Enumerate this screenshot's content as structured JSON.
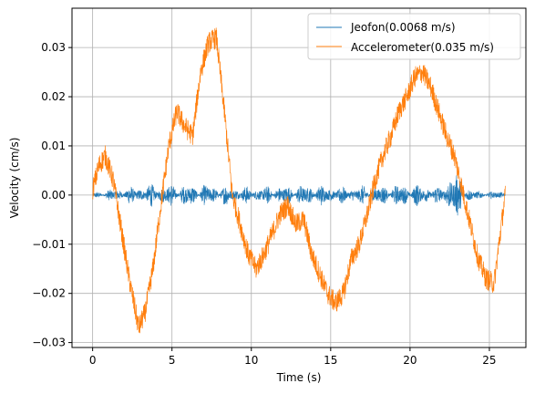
{
  "chart_data": {
    "type": "line",
    "title": "",
    "xlabel": "Time (s)",
    "ylabel": "Velocity (cm/s)",
    "xlim": [
      -1.3,
      27.3
    ],
    "ylim": [
      -0.031,
      0.038
    ],
    "xticks": [
      0,
      5,
      10,
      15,
      20,
      25
    ],
    "yticks": [
      -0.03,
      -0.02,
      -0.01,
      0.0,
      0.01,
      0.02,
      0.03
    ],
    "xtick_labels": [
      "0",
      "5",
      "10",
      "15",
      "20",
      "25"
    ],
    "ytick_labels": [
      "−0.03",
      "−0.02",
      "−0.01",
      "0.00",
      "0.01",
      "0.02",
      "0.03"
    ],
    "grid": true,
    "legend_position": "top-right",
    "series": [
      {
        "name": "Jeofon(0.0068 m/s)",
        "color": "#1f77b4",
        "style": "dense noisy oscillation",
        "x": [
          0,
          2,
          4,
          6,
          8,
          10,
          12,
          14,
          16,
          18,
          20,
          22,
          22.6,
          24,
          26
        ],
        "amplitude": [
          0.0006,
          0.0018,
          0.0026,
          0.0025,
          0.0023,
          0.0018,
          0.0022,
          0.0024,
          0.002,
          0.0022,
          0.0026,
          0.002,
          0.006,
          0.001,
          0.0008
        ]
      },
      {
        "name": "Accelerometer(0.035 m/s)",
        "color": "#ff7f0e",
        "style": "noisy line",
        "x": [
          0.0,
          0.4,
          0.8,
          1.3,
          1.8,
          2.3,
          2.9,
          3.3,
          3.8,
          4.3,
          4.8,
          5.3,
          5.8,
          6.3,
          6.8,
          7.3,
          7.8,
          8.3,
          8.8,
          9.3,
          9.8,
          10.3,
          10.8,
          11.3,
          11.8,
          12.3,
          12.8,
          13.3,
          13.8,
          14.3,
          14.8,
          15.3,
          15.8,
          16.3,
          16.8,
          17.3,
          17.8,
          18.3,
          18.8,
          19.3,
          19.8,
          20.3,
          20.8,
          21.3,
          21.8,
          22.3,
          22.8,
          23.3,
          23.8,
          24.3,
          24.8,
          25.3,
          25.6,
          26.0
        ],
        "y": [
          0.001,
          0.006,
          0.008,
          0.003,
          -0.007,
          -0.017,
          -0.027,
          -0.024,
          -0.015,
          -0.002,
          0.01,
          0.017,
          0.014,
          0.012,
          0.025,
          0.031,
          0.032,
          0.017,
          0.0,
          -0.006,
          -0.012,
          -0.015,
          -0.012,
          -0.008,
          -0.004,
          -0.002,
          -0.006,
          -0.005,
          -0.012,
          -0.016,
          -0.02,
          -0.022,
          -0.02,
          -0.013,
          -0.01,
          -0.004,
          0.003,
          0.008,
          0.012,
          0.017,
          0.02,
          0.024,
          0.025,
          0.022,
          0.017,
          0.012,
          0.008,
          0.001,
          -0.006,
          -0.013,
          -0.017,
          -0.018,
          -0.01,
          0.0
        ]
      }
    ]
  }
}
